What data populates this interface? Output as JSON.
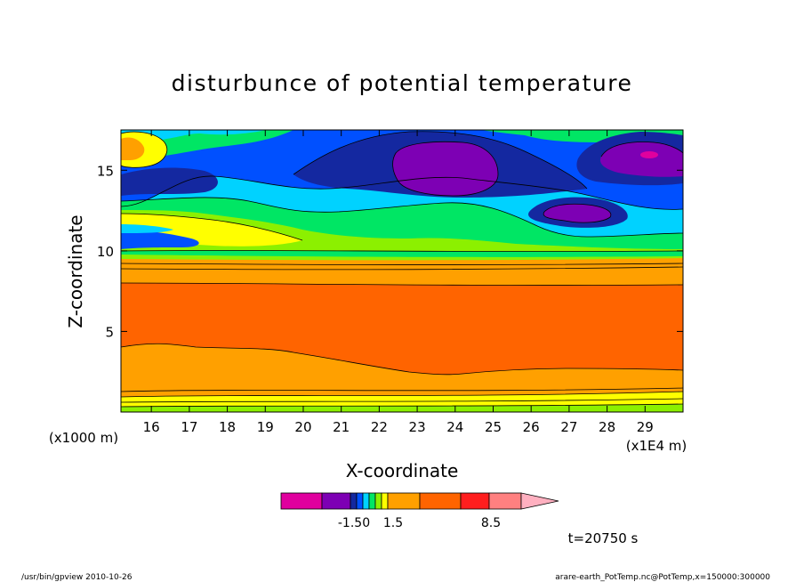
{
  "chart_data": {
    "type": "heatmap",
    "title": "disturbunce of potential temperature",
    "xlabel": "X-coordinate",
    "ylabel": "Z-coordinate",
    "xlim": [
      15.2,
      30.0
    ],
    "ylim": [
      0.0,
      17.5
    ],
    "x_ticks": [
      16,
      17,
      18,
      19,
      20,
      21,
      22,
      23,
      24,
      25,
      26,
      27,
      28,
      29
    ],
    "y_ticks": [
      5,
      10,
      15
    ],
    "x_scale_note": "(x1E4 m)",
    "y_scale_note": "(x1000 m)",
    "colorbar": {
      "levels_shown": [
        "-1.50",
        "1.5",
        "8.5"
      ],
      "colors": [
        "#e0009e",
        "#7d00b4",
        "#1428a0",
        "#0050ff",
        "#00d2ff",
        "#00e664",
        "#8cf000",
        "#ffff00",
        "#ffa000",
        "#ff6400",
        "#ff1e1e",
        "#ff8080",
        "#ffb0c0"
      ]
    },
    "layers": [
      {
        "name": "lower band",
        "z_range": [
          0.0,
          1.3
        ],
        "value": "yellow-to-orange bands"
      },
      {
        "name": "lower orange",
        "z_range": [
          1.3,
          4.2
        ],
        "value": "orange"
      },
      {
        "name": "main red-orange",
        "z_range": [
          2.5,
          8.2
        ],
        "value": "red-orange"
      },
      {
        "name": "upper orange",
        "z_range": [
          8.2,
          9.8
        ],
        "value": "orange"
      },
      {
        "name": "turbulent top",
        "z_range": [
          9.8,
          17.5
        ],
        "value": "negative disturbance mix"
      }
    ]
  },
  "annotations": {
    "time": "t=20750 s",
    "footer_left": "/usr/bin/gpview   2010-10-26",
    "footer_right": "arare-earth_PotTemp.nc@PotTemp,x=150000:300000"
  }
}
